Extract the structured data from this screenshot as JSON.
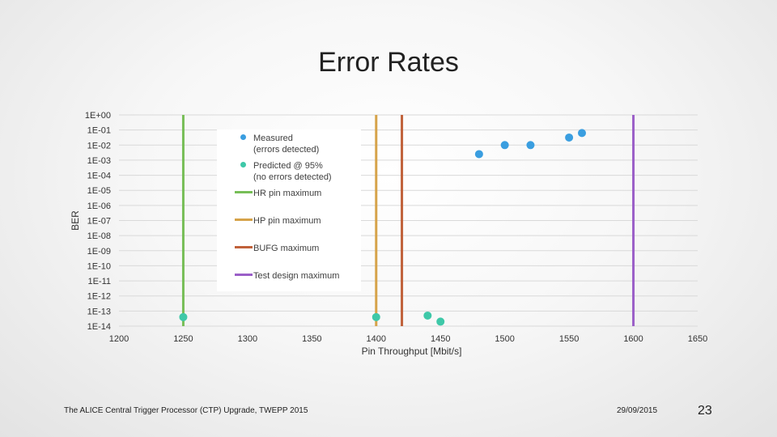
{
  "slide": {
    "title": "Error Rates",
    "footer": "The ALICE Central Trigger Processor (CTP) Upgrade, TWEPP 2015",
    "date": "29/09/2015",
    "page_number": "23"
  },
  "chart_data": {
    "type": "scatter",
    "title": "Error Rates",
    "xlabel": "Pin Throughput [Mbit/s]",
    "ylabel": "BER",
    "xlim": [
      1200,
      1650
    ],
    "x_ticks": [
      1200,
      1250,
      1300,
      1350,
      1400,
      1450,
      1500,
      1550,
      1600,
      1650
    ],
    "y_scale": "log",
    "ylim_exponent": [
      -14,
      0
    ],
    "y_tick_labels": [
      "1E+00",
      "1E-01",
      "1E-02",
      "1E-03",
      "1E-04",
      "1E-05",
      "1E-06",
      "1E-07",
      "1E-08",
      "1E-09",
      "1E-10",
      "1E-11",
      "1E-12",
      "1E-13",
      "1E-14"
    ],
    "grid": true,
    "legend_position": "upper-left inside plot",
    "series": [
      {
        "name": "Measured\n(errors detected)",
        "kind": "points",
        "color": "#3a9ee0",
        "points": [
          {
            "x": 1480,
            "y": "1E-03",
            "exp": -2.6
          },
          {
            "x": 1500,
            "y": "1E-02",
            "exp": -2.0
          },
          {
            "x": 1520,
            "y": "1E-02",
            "exp": -2.0
          },
          {
            "x": 1550,
            "y": "1E-02",
            "exp": -1.5
          },
          {
            "x": 1560,
            "y": "1E-01",
            "exp": -1.2
          }
        ]
      },
      {
        "name": "Predicted @ 95%\n(no errors detected)",
        "kind": "points",
        "color": "#3ec8a8",
        "points": [
          {
            "x": 1250,
            "y": "1E-13",
            "exp": -13.4
          },
          {
            "x": 1400,
            "y": "1E-13",
            "exp": -13.4
          },
          {
            "x": 1440,
            "y": "1E-13",
            "exp": -13.3
          },
          {
            "x": 1450,
            "y": "1E-14",
            "exp": -13.7
          }
        ]
      },
      {
        "name": "HR pin maximum",
        "kind": "vline",
        "x": 1250,
        "color": "#77be57"
      },
      {
        "name": "HP pin maximum",
        "kind": "vline",
        "x": 1400,
        "color": "#d6a34a"
      },
      {
        "name": "BUFG maximum",
        "kind": "vline",
        "x": 1420,
        "color": "#c0613a"
      },
      {
        "name": "Test design maximum",
        "kind": "vline",
        "x": 1600,
        "color": "#9b5fc8"
      }
    ]
  }
}
